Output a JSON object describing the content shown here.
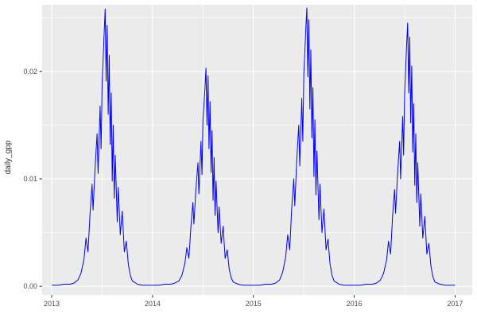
{
  "chart_data": {
    "type": "line",
    "title": "",
    "xlabel": "",
    "ylabel": "daily_gpp",
    "legend": "none",
    "grid": "on",
    "panel_bg": "#ebebeb",
    "grid_color": "#ffffff",
    "line_color": "#0000ff",
    "tick_color": "#333333",
    "tick_label_color": "#4d4d4d",
    "xlim": [
      2012.905,
      2017.17
    ],
    "ylim": [
      -0.0008,
      0.0262
    ],
    "x_ticks": {
      "values": [
        2013,
        2014,
        2015,
        2016,
        2017
      ],
      "labels": [
        "2013",
        "2014",
        "2015",
        "2016",
        "2017"
      ]
    },
    "y_ticks": {
      "values": [
        0,
        0.01,
        0.02
      ],
      "labels": [
        "0.00",
        "0.01",
        "0.02"
      ]
    },
    "x_minor": [
      2013.5,
      2014.5,
      2015.5,
      2016.5
    ],
    "y_minor": [
      0.005,
      0.015,
      0.025
    ],
    "series": [
      {
        "name": "daily_gpp",
        "x": [
          2013,
          2013.06,
          2013.12,
          2013.18,
          2013.22,
          2013.26,
          2013.29,
          2013.32,
          2013.34,
          2013.36,
          2013.38,
          2013.4,
          2013.41,
          2013.43,
          2013.45,
          2013.46,
          2013.48,
          2013.49,
          2013.5,
          2013.52,
          2013.53,
          2013.54,
          2013.55,
          2013.56,
          2013.57,
          2013.58,
          2013.59,
          2013.6,
          2013.61,
          2013.62,
          2013.63,
          2013.65,
          2013.66,
          2013.68,
          2013.7,
          2013.72,
          2013.74,
          2013.76,
          2013.78,
          2013.8,
          2013.85,
          2013.9,
          2013.95,
          2014,
          2014.06,
          2014.12,
          2014.18,
          2014.22,
          2014.26,
          2014.29,
          2014.32,
          2014.34,
          2014.36,
          2014.38,
          2014.4,
          2014.41,
          2014.43,
          2014.45,
          2014.46,
          2014.48,
          2014.49,
          2014.5,
          2014.52,
          2014.53,
          2014.54,
          2014.55,
          2014.56,
          2014.57,
          2014.58,
          2014.59,
          2014.6,
          2014.61,
          2014.62,
          2014.63,
          2014.65,
          2014.66,
          2014.68,
          2014.7,
          2014.72,
          2014.74,
          2014.76,
          2014.78,
          2014.8,
          2014.85,
          2014.9,
          2014.95,
          2015,
          2015.06,
          2015.12,
          2015.18,
          2015.22,
          2015.26,
          2015.29,
          2015.32,
          2015.34,
          2015.36,
          2015.38,
          2015.4,
          2015.41,
          2015.43,
          2015.45,
          2015.46,
          2015.48,
          2015.49,
          2015.5,
          2015.52,
          2015.53,
          2015.54,
          2015.55,
          2015.56,
          2015.57,
          2015.58,
          2015.59,
          2015.6,
          2015.61,
          2015.62,
          2015.63,
          2015.65,
          2015.66,
          2015.68,
          2015.7,
          2015.72,
          2015.74,
          2015.76,
          2015.78,
          2015.8,
          2015.85,
          2015.9,
          2015.95,
          2016,
          2016.06,
          2016.12,
          2016.18,
          2016.22,
          2016.26,
          2016.29,
          2016.32,
          2016.34,
          2016.36,
          2016.38,
          2016.4,
          2016.41,
          2016.43,
          2016.45,
          2016.46,
          2016.48,
          2016.49,
          2016.5,
          2016.52,
          2016.53,
          2016.54,
          2016.55,
          2016.56,
          2016.57,
          2016.58,
          2016.59,
          2016.6,
          2016.61,
          2016.62,
          2016.63,
          2016.65,
          2016.66,
          2016.68,
          2016.7,
          2016.72,
          2016.74,
          2016.76,
          2016.78,
          2016.8,
          2016.85,
          2016.9,
          2016.95,
          2017
        ],
        "y": [
          0.0001,
          0.0001,
          0.0002,
          0.0002,
          0.0003,
          0.0006,
          0.0012,
          0.0025,
          0.0045,
          0.0032,
          0.0068,
          0.0095,
          0.0071,
          0.011,
          0.0142,
          0.0105,
          0.0168,
          0.0128,
          0.019,
          0.0235,
          0.0258,
          0.0191,
          0.0243,
          0.016,
          0.0215,
          0.0132,
          0.018,
          0.0098,
          0.015,
          0.0082,
          0.0122,
          0.006,
          0.0092,
          0.0048,
          0.007,
          0.0032,
          0.0042,
          0.002,
          0.001,
          0.0005,
          0.0002,
          0.0001,
          0.0001,
          0.0001,
          0.0001,
          0.0002,
          0.0002,
          0.0003,
          0.0005,
          0.001,
          0.0021,
          0.0036,
          0.0026,
          0.0055,
          0.0078,
          0.0058,
          0.009,
          0.0115,
          0.0086,
          0.0135,
          0.0104,
          0.0155,
          0.0185,
          0.0203,
          0.015,
          0.0196,
          0.0128,
          0.0172,
          0.0106,
          0.0145,
          0.008,
          0.012,
          0.0066,
          0.0098,
          0.005,
          0.0074,
          0.004,
          0.0056,
          0.0026,
          0.0034,
          0.0016,
          0.0008,
          0.0004,
          0.0002,
          0.0001,
          0.0001,
          0.0001,
          0.0001,
          0.0002,
          0.0002,
          0.0003,
          0.0006,
          0.0013,
          0.0027,
          0.0048,
          0.0034,
          0.0072,
          0.01,
          0.0075,
          0.0118,
          0.015,
          0.0112,
          0.0175,
          0.0135,
          0.0198,
          0.024,
          0.0259,
          0.0195,
          0.0248,
          0.0165,
          0.022,
          0.0138,
          0.0185,
          0.0102,
          0.0155,
          0.0085,
          0.0126,
          0.0062,
          0.0095,
          0.005,
          0.0072,
          0.0034,
          0.0044,
          0.0021,
          0.001,
          0.0005,
          0.0002,
          0.0001,
          0.0001,
          0.0001,
          0.0001,
          0.0002,
          0.0002,
          0.0003,
          0.0006,
          0.0012,
          0.0024,
          0.0042,
          0.003,
          0.0065,
          0.009,
          0.0068,
          0.0105,
          0.0135,
          0.01,
          0.0158,
          0.0122,
          0.018,
          0.0225,
          0.0245,
          0.018,
          0.0232,
          0.0152,
          0.0205,
          0.0125,
          0.017,
          0.0094,
          0.0142,
          0.0078,
          0.0115,
          0.0056,
          0.0086,
          0.0045,
          0.0065,
          0.003,
          0.004,
          0.0019,
          0.0009,
          0.0004,
          0.0002,
          0.0001,
          0.0001,
          0.0001
        ]
      }
    ]
  }
}
